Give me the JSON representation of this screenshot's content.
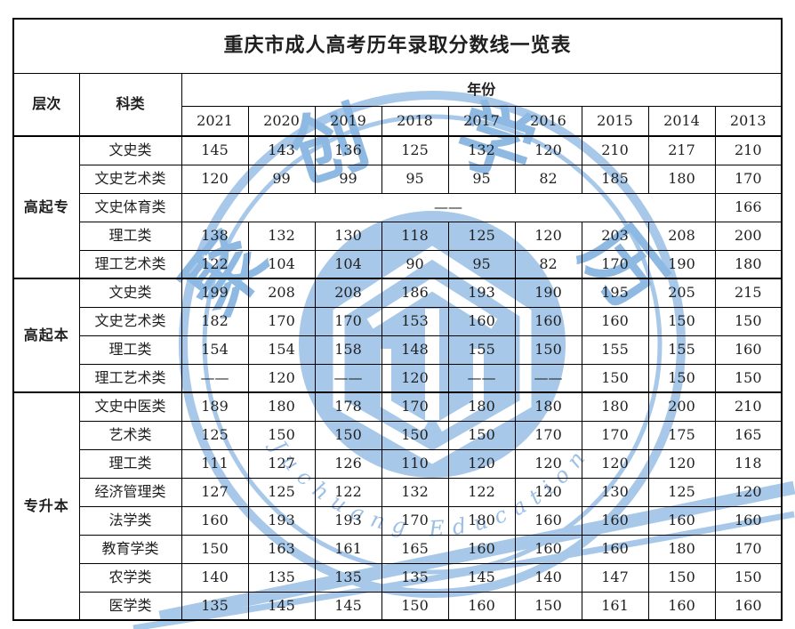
{
  "title": "重庆市成人高考历年录取分数线一览表",
  "headers": {
    "level": "层次",
    "category": "科类",
    "year_group": "年份"
  },
  "years": [
    "2021",
    "2020",
    "2019",
    "2018",
    "2017",
    "2016",
    "2015",
    "2014",
    "2013"
  ],
  "groups": [
    {
      "level": "高起专",
      "rows": [
        {
          "category": "文史类",
          "cells": [
            "145",
            "143",
            "136",
            "125",
            "132",
            "120",
            "210",
            "217",
            "210"
          ]
        },
        {
          "category": "文史艺术类",
          "cells": [
            "120",
            "99",
            "99",
            "95",
            "95",
            "82",
            "185",
            "180",
            "170"
          ]
        },
        {
          "category": "文史体育类",
          "cells": [
            {
              "v": "——",
              "span": 8
            },
            "166"
          ]
        },
        {
          "category": "理工类",
          "cells": [
            "138",
            "132",
            "130",
            "118",
            "125",
            "120",
            "203",
            "208",
            "200"
          ]
        },
        {
          "category": "理工艺术类",
          "cells": [
            "122",
            "104",
            "104",
            "90",
            "95",
            "82",
            "170",
            "190",
            "180"
          ]
        }
      ]
    },
    {
      "level": "高起本",
      "rows": [
        {
          "category": "文史类",
          "cells": [
            "199",
            "208",
            "208",
            "186",
            "193",
            "190",
            "195",
            "205",
            "215"
          ]
        },
        {
          "category": "文史艺术类",
          "cells": [
            "182",
            "170",
            "170",
            "153",
            "160",
            "160",
            "160",
            "150",
            "150"
          ]
        },
        {
          "category": "理工类",
          "cells": [
            "154",
            "154",
            "158",
            "148",
            "155",
            "150",
            "155",
            "155",
            "160"
          ]
        },
        {
          "category": "理工艺术类",
          "cells": [
            "——",
            "120",
            "——",
            "120",
            "——",
            "——",
            "150",
            "150",
            "150"
          ]
        }
      ]
    },
    {
      "level": "专升本",
      "rows": [
        {
          "category": "文史中医类",
          "cells": [
            "189",
            "180",
            "178",
            "170",
            "180",
            "180",
            "180",
            "200",
            "210"
          ]
        },
        {
          "category": "艺术类",
          "cells": [
            "125",
            "150",
            "150",
            "150",
            "150",
            "170",
            "170",
            "175",
            "165"
          ]
        },
        {
          "category": "理工类",
          "cells": [
            "111",
            "127",
            "126",
            "110",
            "120",
            "120",
            "120",
            "120",
            "118"
          ]
        },
        {
          "category": "经济管理类",
          "cells": [
            "127",
            "125",
            "122",
            "132",
            "122",
            "120",
            "130",
            "125",
            "120"
          ]
        },
        {
          "category": "法学类",
          "cells": [
            "160",
            "193",
            "193",
            "170",
            "180",
            "160",
            "160",
            "160",
            "160"
          ]
        },
        {
          "category": "教育学类",
          "cells": [
            "150",
            "163",
            "161",
            "165",
            "160",
            "160",
            "160",
            "180",
            "170"
          ]
        },
        {
          "category": "农学类",
          "cells": [
            "140",
            "135",
            "135",
            "135",
            "145",
            "140",
            "147",
            "150",
            "150"
          ]
        },
        {
          "category": "医学类",
          "cells": [
            "135",
            "145",
            "145",
            "150",
            "160",
            "150",
            "161",
            "160",
            "160"
          ]
        }
      ]
    }
  ],
  "watermark": {
    "chars": [
      "聚",
      "创",
      "学",
      "历"
    ],
    "latin_text": "Juchuang Education",
    "fill_blue": "#a7c8e9",
    "char_blue": "#8db9e2",
    "latin_blue": "#9cc0e5"
  },
  "colors": {
    "table_border": "#000000",
    "text": "#1f1f1f",
    "page_background": "#ffffff"
  }
}
